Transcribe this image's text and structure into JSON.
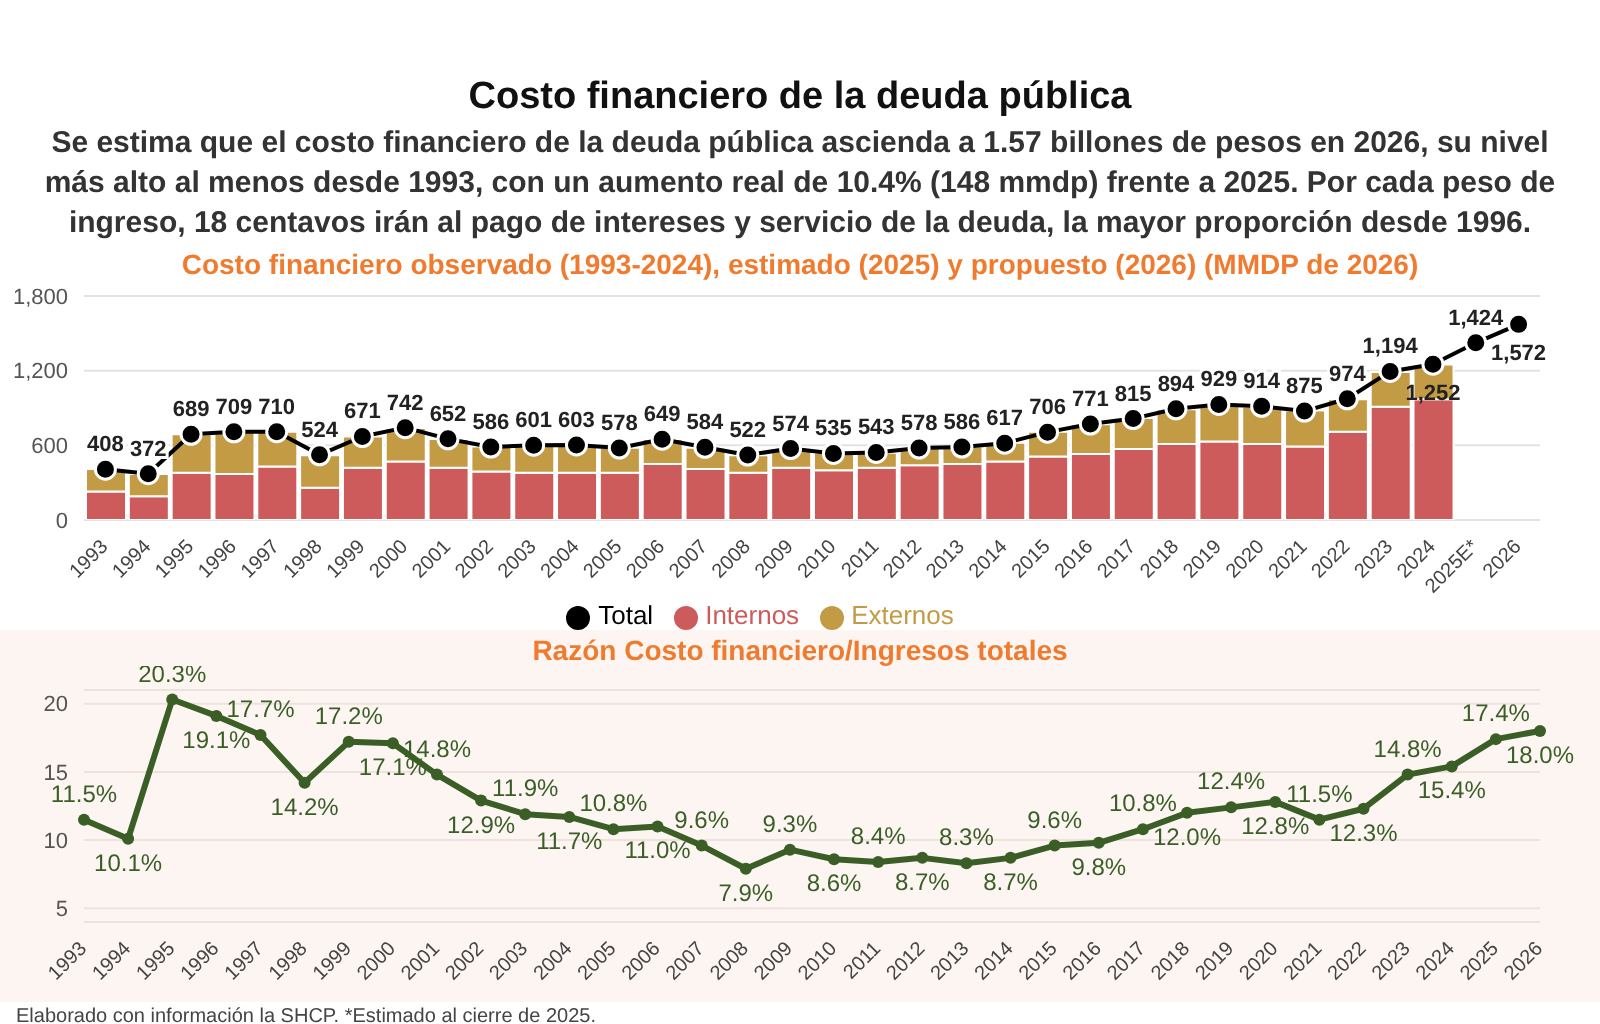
{
  "chart_data": [
    {
      "type": "bar",
      "title": "Costo financiero de la deuda pública",
      "subtitle": "Se estima que el costo financiero de la deuda pública ascienda a 1.57 billones de pesos en 2026, su nivel más alto al menos desde 1993, con un aumento real de 10.4% (148 mmdp) frente a 2025. Por cada peso de ingreso, 18 centavos irán al pago de intereses y servicio de la deuda, la mayor proporción desde 1996.",
      "annotations": [
        "Costo financiero observado (1993-2024), estimado (2025) y propuesto (2026) (MMDP de 2026)"
      ],
      "categories": [
        "1993",
        "1994",
        "1995",
        "1996",
        "1997",
        "1998",
        "1999",
        "2000",
        "2001",
        "2002",
        "2003",
        "2004",
        "2005",
        "2006",
        "2007",
        "2008",
        "2009",
        "2010",
        "2011",
        "2012",
        "2013",
        "2014",
        "2015",
        "2016",
        "2017",
        "2018",
        "2019",
        "2020",
        "2021",
        "2022",
        "2023",
        "2024",
        "2025E*",
        "2026"
      ],
      "stacked": true,
      "series": [
        {
          "name": "Total",
          "type": "line",
          "color": "#000000",
          "values": [
            408,
            372,
            689,
            709,
            710,
            524,
            671,
            742,
            652,
            586,
            601,
            603,
            578,
            649,
            584,
            522,
            574,
            535,
            543,
            578,
            586,
            617,
            706,
            771,
            815,
            894,
            929,
            914,
            875,
            974,
            1194,
            1252,
            1424,
            1572
          ],
          "value_labels": [
            "408",
            "372",
            "689",
            "709",
            "710",
            "524",
            "671",
            "742",
            "652",
            "586",
            "601",
            "603",
            "578",
            "649",
            "584",
            "522",
            "574",
            "535",
            "543",
            "578",
            "586",
            "617",
            "706",
            "771",
            "815",
            "894",
            "929",
            "914",
            "875",
            "974",
            "1,194",
            "1,252",
            "1,424",
            "1,572"
          ]
        },
        {
          "name": "Internos",
          "color": "#cd5b5b",
          "values": [
            230,
            190,
            380,
            370,
            430,
            260,
            420,
            470,
            420,
            390,
            380,
            380,
            380,
            450,
            410,
            380,
            420,
            400,
            420,
            440,
            450,
            470,
            510,
            530,
            570,
            610,
            630,
            610,
            590,
            710,
            910,
            970,
            null,
            null
          ]
        },
        {
          "name": "Externos",
          "color": "#c49b45",
          "values": [
            180,
            180,
            310,
            340,
            280,
            260,
            250,
            270,
            230,
            200,
            220,
            220,
            200,
            200,
            170,
            140,
            150,
            140,
            120,
            140,
            140,
            150,
            200,
            240,
            250,
            280,
            300,
            300,
            290,
            260,
            280,
            280,
            null,
            null
          ]
        }
      ],
      "ylim": [
        0,
        1800
      ],
      "yticks": [
        0,
        600,
        {
          "value": 1200,
          "label": "1,200"
        },
        {
          "value": 1800,
          "label": "1,800"
        }
      ],
      "grid": "y",
      "legend": "bottom",
      "marker": "circle"
    },
    {
      "type": "line",
      "title": "Razón Costo financiero/Ingresos totales",
      "annotations": [
        "Elaborado con información la SHCP. *Estimado al cierre de 2025."
      ],
      "categories": [
        "1993",
        "1994",
        "1995",
        "1996",
        "1997",
        "1998",
        "1999",
        "2000",
        "2001",
        "2002",
        "2003",
        "2004",
        "2005",
        "2006",
        "2007",
        "2008",
        "2009",
        "2010",
        "2011",
        "2012",
        "2013",
        "2014",
        "2015",
        "2016",
        "2017",
        "2018",
        "2019",
        "2020",
        "2021",
        "2022",
        "2023",
        "2024",
        "2025",
        "2026"
      ],
      "series": [
        {
          "color": "#3b5e27",
          "values": [
            11.5,
            10.1,
            20.3,
            19.1,
            17.7,
            14.2,
            17.2,
            17.1,
            14.8,
            12.9,
            11.9,
            11.7,
            10.8,
            11.0,
            9.6,
            7.9,
            9.3,
            8.6,
            8.4,
            8.7,
            8.3,
            8.7,
            9.6,
            9.8,
            10.8,
            12.0,
            12.4,
            12.8,
            11.5,
            12.3,
            14.8,
            15.4,
            17.4,
            18.0
          ],
          "value_labels": [
            "11.5%",
            "10.1%",
            "20.3%",
            "19.1%",
            "17.7%",
            "14.2%",
            "17.2%",
            "17.1%",
            "14.8%",
            "12.9%",
            "11.9%",
            "11.7%",
            "10.8%",
            "11.0%",
            "9.6%",
            "7.9%",
            "9.3%",
            "8.6%",
            "8.4%",
            "8.7%",
            "8.3%",
            "8.7%",
            "9.6%",
            "9.8%",
            "10.8%",
            "12.0%",
            "12.4%",
            "12.8%",
            "11.5%",
            "12.3%",
            "14.8%",
            "15.4%",
            "17.4%",
            "18.0%"
          ]
        }
      ],
      "ylim": [
        4,
        21
      ],
      "yticks": [
        5,
        10,
        15,
        20
      ],
      "grid": "y",
      "legend": false,
      "marker": "circle"
    }
  ]
}
